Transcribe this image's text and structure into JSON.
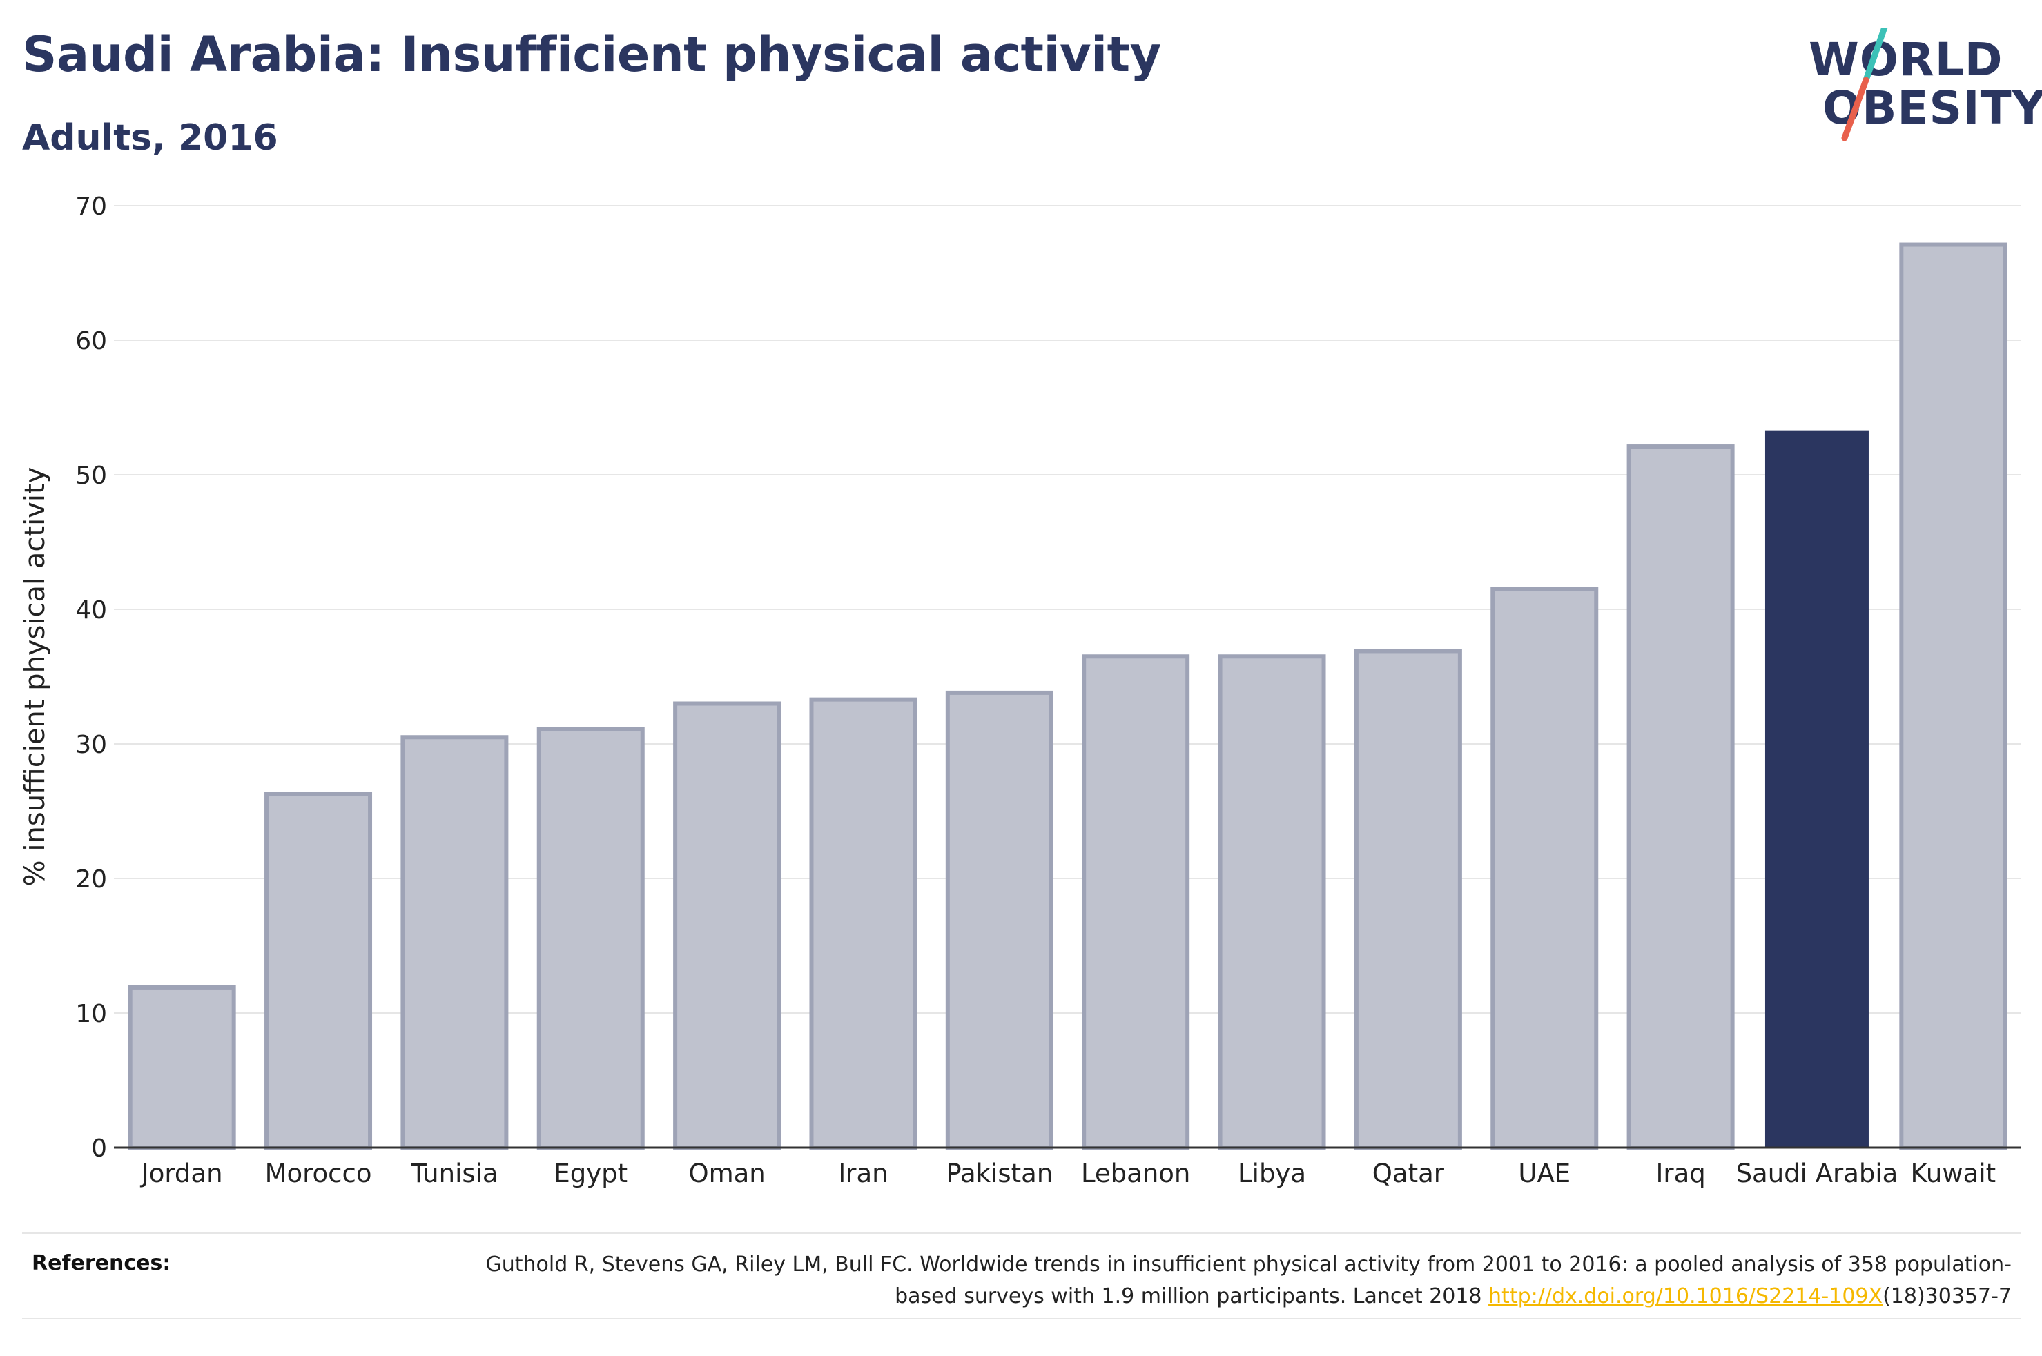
{
  "header": {
    "title": "Saudi Arabia: Insufficient physical activity",
    "subtitle": "Adults, 2016"
  },
  "logo": {
    "line1": "WORLD",
    "line2": "OBESITY",
    "colors": {
      "text": "#2b3660",
      "slash_top": "#3cc1b7",
      "slash_bottom": "#e8604c"
    }
  },
  "chart_data": {
    "type": "bar",
    "categories": [
      "Jordan",
      "Morocco",
      "Tunisia",
      "Egypt",
      "Oman",
      "Iran",
      "Pakistan",
      "Lebanon",
      "Libya",
      "Qatar",
      "UAE",
      "Iraq",
      "Saudi Arabia",
      "Kuwait"
    ],
    "values": [
      11.9,
      26.3,
      30.5,
      31.1,
      33.0,
      33.3,
      33.8,
      36.5,
      36.5,
      36.9,
      41.5,
      52.1,
      53.3,
      67.1
    ],
    "highlight": "Saudi Arabia",
    "title": "",
    "xlabel": "",
    "ylabel": "% insufficient physical activity",
    "ylim": [
      0,
      70
    ],
    "yticks": [
      0,
      10,
      20,
      30,
      40,
      50,
      60,
      70
    ],
    "grid": true,
    "colors": {
      "bar": "#bfc2ce",
      "bar_edge": "#9ea3b6",
      "highlight": "#2b3660",
      "axis": "#333333",
      "grid": "#e6e6e6"
    }
  },
  "references": {
    "label": "References:",
    "text_before": "Guthold R, Stevens GA, Riley LM, Bull FC. Worldwide trends in insufficient physical activity from 2001 to 2016: a pooled analysis of 358 population-based surveys with 1.9 million participants. Lancet 2018 ",
    "link_text": "http://dx.doi.org/10.1016/S2214-109X",
    "text_after": "(18)30357-7"
  }
}
